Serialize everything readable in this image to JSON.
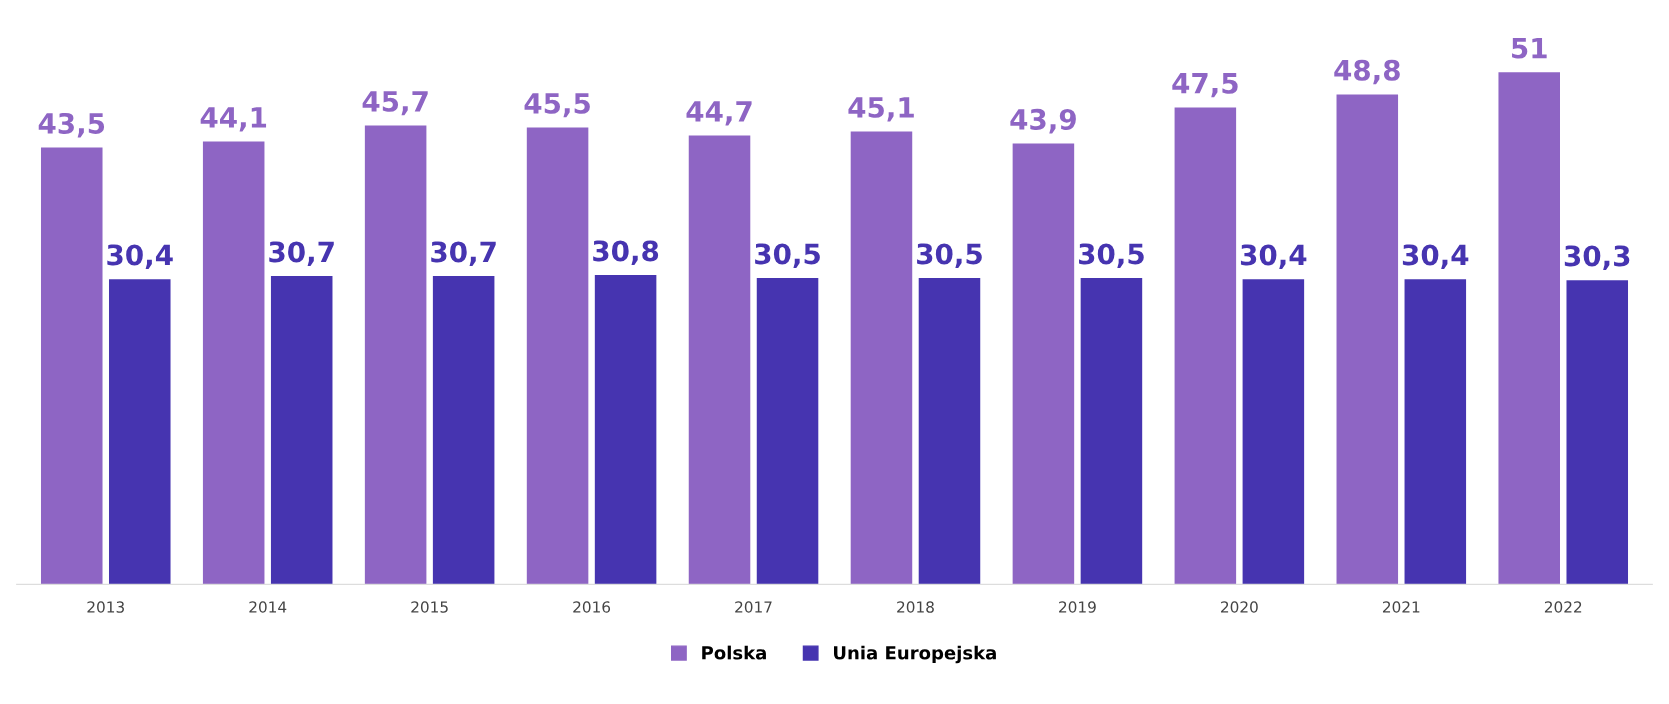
{
  "chart_data": {
    "type": "bar",
    "categories": [
      "2013",
      "2014",
      "2015",
      "2016",
      "2017",
      "2018",
      "2019",
      "2020",
      "2021",
      "2022"
    ],
    "series": [
      {
        "name": "Polska",
        "color": "#8e65c4",
        "values": [
          43.5,
          44.1,
          45.7,
          45.5,
          44.7,
          45.1,
          43.9,
          47.5,
          48.8,
          51
        ],
        "value_labels": [
          "43,5",
          "44,1",
          "45,7",
          "45,5",
          "44,7",
          "45,1",
          "43,9",
          "47,5",
          "48,8",
          "51"
        ]
      },
      {
        "name": "Unia Europejska",
        "color": "#4634b0",
        "values": [
          30.4,
          30.7,
          30.7,
          30.8,
          30.5,
          30.5,
          30.5,
          30.4,
          30.4,
          30.3
        ],
        "value_labels": [
          "30,4",
          "30,7",
          "30,7",
          "30,8",
          "30,5",
          "30,5",
          "30,5",
          "30,4",
          "30,4",
          "30,3"
        ]
      }
    ],
    "legend": "bottom",
    "grid": false,
    "tick_labels": "x"
  }
}
